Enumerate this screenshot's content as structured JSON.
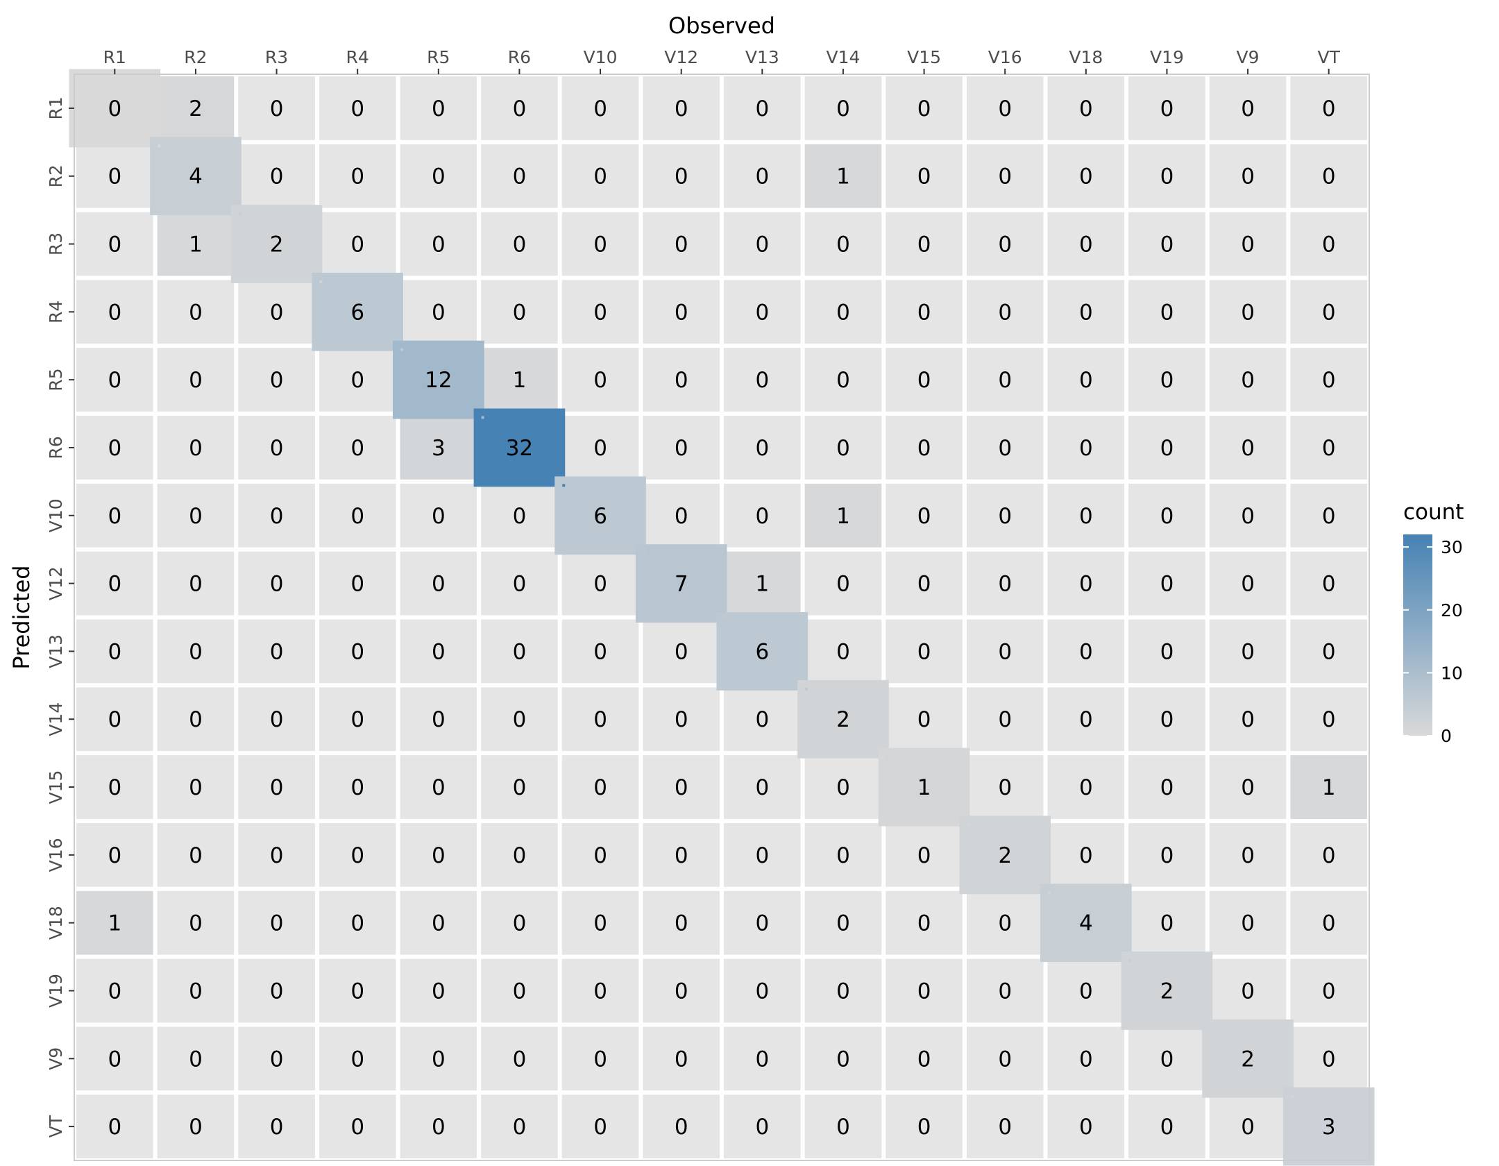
{
  "chart_data": {
    "type": "heatmap",
    "title": "",
    "xlabel": "Observed",
    "ylabel": "Predicted",
    "x_axis_position": "top",
    "x_categories": [
      "R1",
      "R2",
      "R3",
      "R4",
      "R5",
      "R6",
      "V10",
      "V12",
      "V13",
      "V14",
      "V15",
      "V16",
      "V18",
      "V19",
      "V9",
      "VT"
    ],
    "y_categories": [
      "R1",
      "R2",
      "R3",
      "R4",
      "R5",
      "R6",
      "V10",
      "V12",
      "V13",
      "V14",
      "V15",
      "V16",
      "V18",
      "V19",
      "V9",
      "VT"
    ],
    "values": [
      [
        0,
        2,
        0,
        0,
        0,
        0,
        0,
        0,
        0,
        0,
        0,
        0,
        0,
        0,
        0,
        0
      ],
      [
        0,
        4,
        0,
        0,
        0,
        0,
        0,
        0,
        0,
        1,
        0,
        0,
        0,
        0,
        0,
        0
      ],
      [
        0,
        1,
        2,
        0,
        0,
        0,
        0,
        0,
        0,
        0,
        0,
        0,
        0,
        0,
        0,
        0
      ],
      [
        0,
        0,
        0,
        6,
        0,
        0,
        0,
        0,
        0,
        0,
        0,
        0,
        0,
        0,
        0,
        0
      ],
      [
        0,
        0,
        0,
        0,
        12,
        1,
        0,
        0,
        0,
        0,
        0,
        0,
        0,
        0,
        0,
        0
      ],
      [
        0,
        0,
        0,
        0,
        3,
        32,
        0,
        0,
        0,
        0,
        0,
        0,
        0,
        0,
        0,
        0
      ],
      [
        0,
        0,
        0,
        0,
        0,
        0,
        6,
        0,
        0,
        1,
        0,
        0,
        0,
        0,
        0,
        0
      ],
      [
        0,
        0,
        0,
        0,
        0,
        0,
        0,
        7,
        1,
        0,
        0,
        0,
        0,
        0,
        0,
        0
      ],
      [
        0,
        0,
        0,
        0,
        0,
        0,
        0,
        0,
        6,
        0,
        0,
        0,
        0,
        0,
        0,
        0
      ],
      [
        0,
        0,
        0,
        0,
        0,
        0,
        0,
        0,
        0,
        2,
        0,
        0,
        0,
        0,
        0,
        0
      ],
      [
        0,
        0,
        0,
        0,
        0,
        0,
        0,
        0,
        0,
        0,
        1,
        0,
        0,
        0,
        0,
        1
      ],
      [
        0,
        0,
        0,
        0,
        0,
        0,
        0,
        0,
        0,
        0,
        0,
        2,
        0,
        0,
        0,
        0
      ],
      [
        1,
        0,
        0,
        0,
        0,
        0,
        0,
        0,
        0,
        0,
        0,
        0,
        4,
        0,
        0,
        0
      ],
      [
        0,
        0,
        0,
        0,
        0,
        0,
        0,
        0,
        0,
        0,
        0,
        0,
        0,
        2,
        0,
        0
      ],
      [
        0,
        0,
        0,
        0,
        0,
        0,
        0,
        0,
        0,
        0,
        0,
        0,
        0,
        0,
        2,
        0
      ],
      [
        0,
        0,
        0,
        0,
        0,
        0,
        0,
        0,
        0,
        0,
        0,
        0,
        0,
        0,
        0,
        3
      ]
    ],
    "diagonal_highlighted": true,
    "color_scale": {
      "low": "#d9d9d9",
      "high": "#4682b4",
      "min": 0,
      "max": 32
    },
    "panel_background": "#e5e5e5",
    "grid_color": "#ffffff",
    "legend": {
      "title": "count",
      "position": "right",
      "ticks": [
        0,
        10,
        20,
        30
      ]
    }
  }
}
